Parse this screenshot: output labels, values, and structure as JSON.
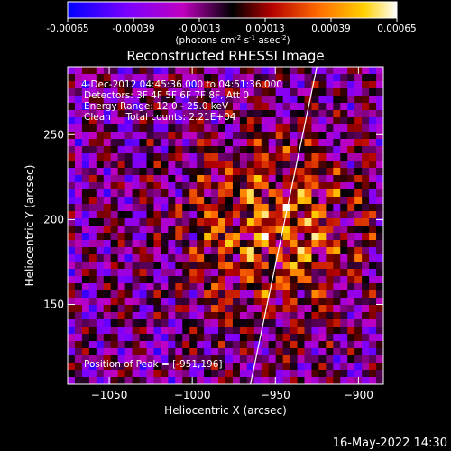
{
  "chart_data": {
    "type": "heatmap",
    "title": "Reconstructed RHESSI Image",
    "xlabel": "Heliocentric X (arcsec)",
    "ylabel": "Heliocentric Y (arcsec)",
    "x_ticks": [
      -1050,
      -1000,
      -950,
      -900
    ],
    "y_ticks": [
      150,
      200,
      250
    ],
    "xlim": [
      -1075,
      -885
    ],
    "ylim": [
      103,
      290
    ],
    "colorbar": {
      "range": [
        -0.00065,
        0.00065
      ],
      "tick_labels": [
        "-0.00065",
        "-0.00039",
        "-0.00013",
        "0.00013",
        "0.00039",
        "0.00065"
      ],
      "unit_label": "(photons cm",
      "unit_sup1": "-2",
      "unit_mid": " s",
      "unit_sup2": "-1",
      "unit_end": " asec",
      "unit_sup3": "-2",
      "unit_close": ")",
      "colors": [
        "#0000ff",
        "#7a00ff",
        "#c000c0",
        "#000000",
        "#b40000",
        "#ff6a00",
        "#ffd000",
        "#ffffff"
      ]
    },
    "annotations": [
      "4-Dec-2012 04:45:36.000 to 04:51:36.000",
      "Detectors: 3F 4F 5F 6F 7F 8F, Att 0",
      "Energy Range: 12.0 - 25.0 keV",
      "Clean     Total counts: 2.21E+04",
      "Position of Peak = [-951,196]"
    ],
    "peak": {
      "x": -951,
      "y": 196
    },
    "limb_line": [
      [
        -965,
        103
      ],
      [
        -925,
        290
      ]
    ]
  },
  "footer": {
    "timestamp": "16-May-2022 14:30"
  }
}
